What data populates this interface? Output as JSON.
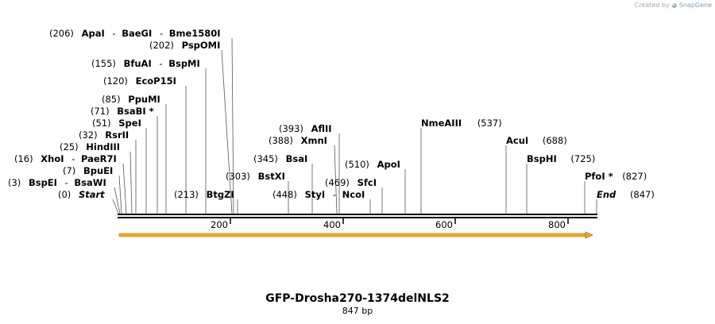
{
  "credit": {
    "prefix": "Created by",
    "brand": "SnapGene"
  },
  "plasmid": {
    "name": "GFP-Drosha270-1374delNLS2",
    "length_label": "847 bp",
    "length": 847
  },
  "ruler": {
    "ticks": [
      "200",
      "400",
      "600",
      "800"
    ]
  },
  "sites": [
    {
      "group": [
        "(206)",
        "ApaI",
        "-",
        "BaeGI",
        "-",
        "Bme1580I"
      ],
      "cut": 206
    },
    {
      "group": [
        "(202)",
        "PspOMI"
      ],
      "cut": 202
    },
    {
      "group": [
        "(155)",
        "BfuAI",
        "-",
        "BspMI"
      ],
      "cut": 155
    },
    {
      "group": [
        "(120)",
        "EcoP15I"
      ],
      "cut": 120
    },
    {
      "group": [
        "(85)",
        "PpuMI"
      ],
      "cut": 85
    },
    {
      "group": [
        "(71)",
        "BsaBI *"
      ],
      "cut": 71
    },
    {
      "group": [
        "(51)",
        "SpeI"
      ],
      "cut": 51
    },
    {
      "group": [
        "(32)",
        "RsrII"
      ],
      "cut": 32
    },
    {
      "group": [
        "(25)",
        "HindIII"
      ],
      "cut": 25
    },
    {
      "group": [
        "(16)",
        "XhoI",
        "-",
        "PaeR7I"
      ],
      "cut": 16
    },
    {
      "group": [
        "(7)",
        "BpuEI"
      ],
      "cut": 7
    },
    {
      "group": [
        "(3)",
        "BspEI",
        "-",
        "BsaWI"
      ],
      "cut": 3
    },
    {
      "group": [
        "(0)",
        "Start"
      ],
      "cut": 0
    },
    {
      "group": [
        "(213)",
        "BtgZI"
      ],
      "cut": 213
    },
    {
      "group": [
        "(303)",
        "BstXI"
      ],
      "cut": 303
    },
    {
      "group": [
        "(345)",
        "BsaI"
      ],
      "cut": 345
    },
    {
      "group": [
        "(388)",
        "XmnI"
      ],
      "cut": 388
    },
    {
      "group": [
        "(393)",
        "AflII"
      ],
      "cut": 393
    },
    {
      "group": [
        "(448)",
        "StyI",
        "-",
        "NcoI"
      ],
      "cut": 448
    },
    {
      "group": [
        "(469)",
        "SfcI"
      ],
      "cut": 469
    },
    {
      "group": [
        "(510)",
        "ApoI"
      ],
      "cut": 510
    },
    {
      "group": [
        "NmeAIII",
        "(537)"
      ],
      "cut": 537
    },
    {
      "group": [
        "AcuI",
        "(688)"
      ],
      "cut": 688
    },
    {
      "group": [
        "BspHI",
        "(725)"
      ],
      "cut": 725
    },
    {
      "group": [
        "PfoI *",
        "(827)"
      ],
      "cut": 827
    },
    {
      "group": [
        "End",
        "(847)"
      ],
      "cut": 847
    }
  ]
}
